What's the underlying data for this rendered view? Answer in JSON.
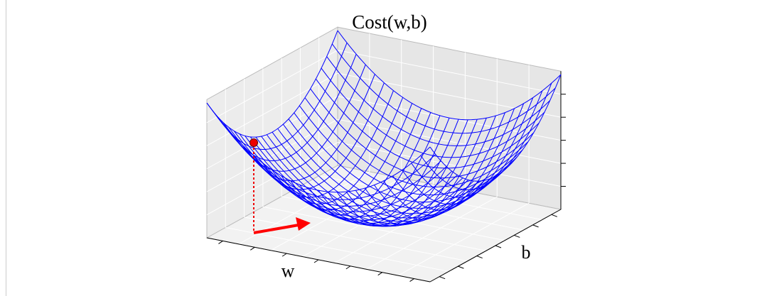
{
  "chart_data": {
    "type": "surface3d",
    "title": "Cost(w,b)",
    "xlabel": "w",
    "ylabel": "b",
    "color": "#0000ff"
  }
}
